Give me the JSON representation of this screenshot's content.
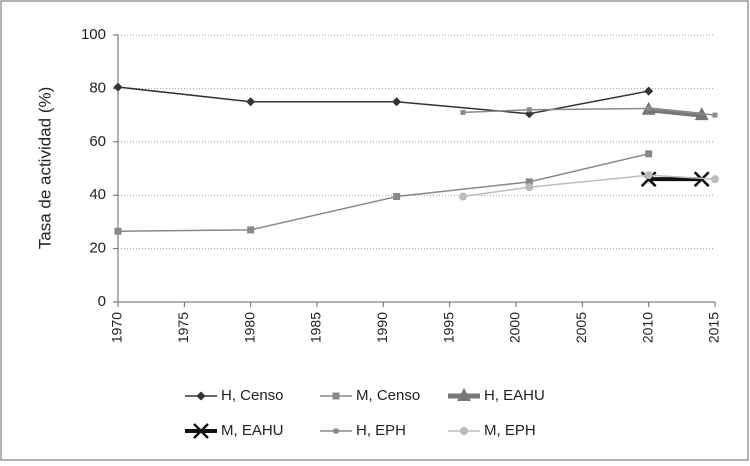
{
  "chart_data": {
    "type": "line",
    "y_label": "Tasa de actividad (%)",
    "xlim": [
      1970,
      2015
    ],
    "xticks": [
      1970,
      1975,
      1980,
      1985,
      1990,
      1995,
      2000,
      2005,
      2010,
      2015
    ],
    "ylim": [
      0,
      100
    ],
    "yticks": [
      0,
      20,
      40,
      60,
      80,
      100
    ],
    "grid": true,
    "series": [
      {
        "name": "H, Censo",
        "color": "#333333",
        "marker": "diamond",
        "line_width": 1.5,
        "x": [
          1970,
          1980,
          1991,
          2001,
          2010
        ],
        "values": [
          80.5,
          75,
          75,
          70.5,
          79
        ]
      },
      {
        "name": "M, Censo",
        "color": "#888888",
        "marker": "square",
        "line_width": 1.5,
        "x": [
          1970,
          1980,
          1991,
          2001,
          2010
        ],
        "values": [
          26.5,
          27,
          39.5,
          45,
          55.5
        ]
      },
      {
        "name": "H, EAHU",
        "color": "#777777",
        "marker": "triangle",
        "line_width": 5,
        "x": [
          2010,
          2014
        ],
        "values": [
          72,
          70
        ]
      },
      {
        "name": "M, EAHU",
        "color": "#111111",
        "marker": "cross",
        "line_width": 4,
        "x": [
          2010,
          2014
        ],
        "values": [
          46,
          46
        ]
      },
      {
        "name": "H, EPH",
        "color": "#8a8a8a",
        "marker": "small-square",
        "line_width": 1.5,
        "x": [
          1996,
          2001,
          2010,
          2015
        ],
        "values": [
          71,
          72,
          72.5,
          70
        ]
      },
      {
        "name": "M, EPH",
        "color": "#bbbbbb",
        "marker": "circle",
        "line_width": 1.5,
        "x": [
          1996,
          2001,
          2010,
          2015
        ],
        "values": [
          39.5,
          43,
          47.5,
          46
        ]
      }
    ]
  }
}
